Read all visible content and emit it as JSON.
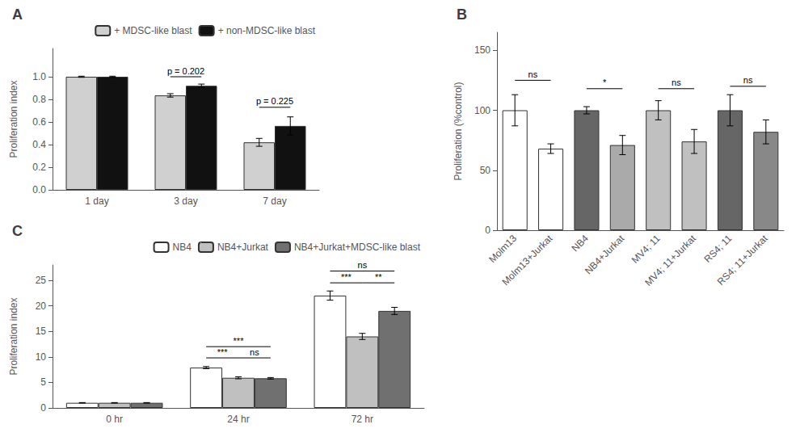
{
  "chart_data": [
    {
      "type": "bar",
      "title": "A",
      "categories": [
        "1 day",
        "3 day",
        "7 day"
      ],
      "series": [
        {
          "name": "+ MDSC-like blast",
          "color": "#d0d0d0",
          "values": [
            1.0,
            0.835,
            0.42
          ],
          "errors": [
            0.005,
            0.015,
            0.035
          ]
        },
        {
          "name": "+ non-MDSC-like blast",
          "color": "#111111",
          "values": [
            1.0,
            0.92,
            0.565
          ],
          "errors": [
            0.005,
            0.015,
            0.08
          ]
        }
      ],
      "ylabel": "Proliferation index",
      "ylim": [
        0.0,
        1.25
      ],
      "yticks": [
        {
          "value": 0,
          "label": "0.0"
        },
        0.2,
        0.4,
        0.6,
        0.8,
        {
          "value": 1,
          "label": "1.0"
        }
      ],
      "grid": false,
      "legend": "upper right",
      "annotations": [
        {
          "text": "p = 0.202",
          "category": "3 day",
          "from": "+ MDSC-like blast",
          "to": "+ non-MDSC-like blast",
          "y": 1.0
        },
        {
          "text": "p = 0.225",
          "category": "7 day",
          "from": "+ MDSC-like blast",
          "to": "+ non-MDSC-like blast",
          "y": 0.73
        }
      ]
    },
    {
      "type": "bar",
      "title": "B",
      "categories": [
        "Molm13",
        "Molm13+Jurkat",
        "NB4",
        "NB4+Jurkat",
        "MV4; 11",
        "MV4; 11+Jurkat",
        "RS4; 11",
        "RS4; 11+Jurkat"
      ],
      "values": [
        100,
        68,
        100,
        71,
        100,
        74,
        100,
        82
      ],
      "errors": [
        13,
        4,
        3,
        8,
        8,
        10,
        13,
        10
      ],
      "colors": [
        "#ffffff",
        "#ffffff",
        "#666666",
        "#aaaaaa",
        "#c0c0c0",
        "#c0c0c0",
        "#666666",
        "#888888"
      ],
      "ylabel": "Proliferation (%control)",
      "ylim": [
        0,
        165
      ],
      "yticks": [
        0,
        50,
        100,
        150
      ],
      "grid": false,
      "annotations": [
        {
          "text": "ns",
          "from": "Molm13",
          "to": "Molm13+Jurkat",
          "y": 125
        },
        {
          "text": "*",
          "from": "NB4",
          "to": "NB4+Jurkat",
          "y": 118
        },
        {
          "text": "ns",
          "from": "MV4; 11",
          "to": "MV4; 11+Jurkat",
          "y": 118
        },
        {
          "text": "ns",
          "from": "RS4; 11",
          "to": "RS4; 11+Jurkat",
          "y": 120
        }
      ]
    },
    {
      "type": "bar",
      "title": "C",
      "categories": [
        "0 hr",
        "24 hr",
        "72 hr"
      ],
      "series": [
        {
          "name": "NB4",
          "color": "#ffffff",
          "values": [
            1.0,
            7.9,
            22.0
          ],
          "errors": [
            0.05,
            0.2,
            0.9
          ]
        },
        {
          "name": "NB4+Jurkat",
          "color": "#c0c0c0",
          "values": [
            1.0,
            5.9,
            14.0
          ],
          "errors": [
            0.05,
            0.2,
            0.6
          ]
        },
        {
          "name": "NB4+Jurkat+MDSC-like blast",
          "color": "#707070",
          "values": [
            1.0,
            5.8,
            19.0
          ],
          "errors": [
            0.05,
            0.15,
            0.7
          ]
        }
      ],
      "ylabel": "Proliferation index",
      "ylim": [
        0,
        28
      ],
      "yticks": [
        0,
        5,
        10,
        15,
        20,
        25
      ],
      "grid": false,
      "legend": "upper right",
      "annotations": [
        {
          "text": "***",
          "category": "24 hr",
          "from": "NB4",
          "to": "NB4+Jurkat",
          "y": 9.8
        },
        {
          "text": "ns",
          "category": "24 hr",
          "from": "NB4+Jurkat",
          "to": "NB4+Jurkat+MDSC-like blast",
          "y": 9.8
        },
        {
          "text": "***",
          "category": "24 hr",
          "from": "NB4",
          "to": "NB4+Jurkat+MDSC-like blast",
          "y": 12.0
        },
        {
          "text": "***",
          "category": "72 hr",
          "from": "NB4",
          "to": "NB4+Jurkat",
          "y": 24.5
        },
        {
          "text": "**",
          "category": "72 hr",
          "from": "NB4+Jurkat",
          "to": "NB4+Jurkat+MDSC-like blast",
          "y": 24.5
        },
        {
          "text": "ns",
          "category": "72 hr",
          "from": "NB4",
          "to": "NB4+Jurkat+MDSC-like blast",
          "y": 26.8
        }
      ]
    }
  ]
}
